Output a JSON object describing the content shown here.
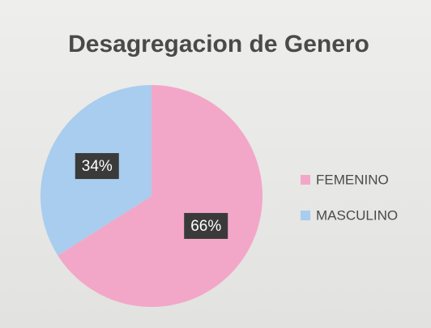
{
  "chart_data": {
    "type": "pie",
    "title": "Desagregacion de Genero",
    "categories": [
      "FEMENINO",
      "MASCULINO"
    ],
    "values": [
      66,
      34
    ],
    "value_labels": [
      "66%",
      "34%"
    ],
    "colors": [
      "#f3a7c8",
      "#a8cdee"
    ],
    "legend": "right"
  }
}
